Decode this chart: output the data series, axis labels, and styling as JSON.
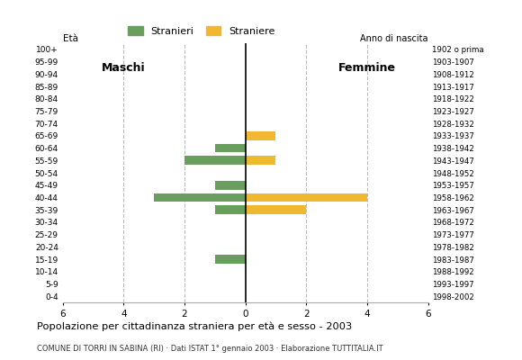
{
  "age_groups": [
    "100+",
    "95-99",
    "90-94",
    "85-89",
    "80-84",
    "75-79",
    "70-74",
    "65-69",
    "60-64",
    "55-59",
    "50-54",
    "45-49",
    "40-44",
    "35-39",
    "30-34",
    "25-29",
    "20-24",
    "15-19",
    "10-14",
    "5-9",
    "0-4"
  ],
  "birth_years": [
    "1902 o prima",
    "1903-1907",
    "1908-1912",
    "1913-1917",
    "1918-1922",
    "1923-1927",
    "1928-1932",
    "1933-1937",
    "1938-1942",
    "1943-1947",
    "1948-1952",
    "1953-1957",
    "1958-1962",
    "1963-1967",
    "1968-1972",
    "1973-1977",
    "1978-1982",
    "1983-1987",
    "1988-1992",
    "1993-1997",
    "1998-2002"
  ],
  "males": [
    0,
    0,
    0,
    0,
    0,
    0,
    0,
    0,
    1,
    2,
    0,
    1,
    3,
    1,
    0,
    0,
    0,
    1,
    0,
    0,
    0
  ],
  "females": [
    0,
    0,
    0,
    0,
    0,
    0,
    0,
    1,
    0,
    1,
    0,
    0,
    4,
    2,
    0,
    0,
    0,
    0,
    0,
    0,
    0
  ],
  "male_color": "#6a9e5e",
  "female_color": "#f0b830",
  "title": "Popolazione per cittadinanza straniera per età e sesso - 2003",
  "subtitle": "COMUNE DI TORRI IN SABINA (RI) · Dati ISTAT 1° gennaio 2003 · Elaborazione TUTTITALIA.IT",
  "legend_male": "Stranieri",
  "legend_female": "Straniere",
  "label_maschi": "Maschi",
  "label_femmine": "Femmine",
  "ylabel_left": "Età",
  "ylabel_right": "Anno di nascita",
  "xlim": 6,
  "background_color": "#ffffff",
  "grid_color": "#bbbbbb"
}
